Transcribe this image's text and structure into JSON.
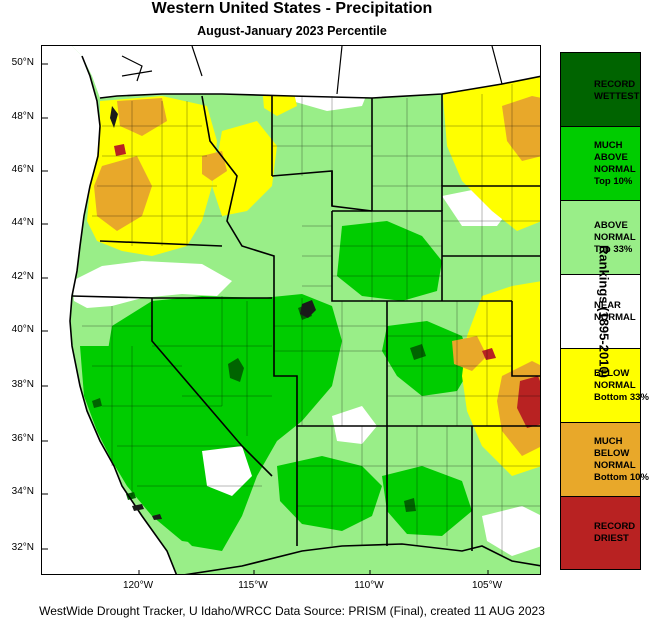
{
  "title": "Western United States - Precipitation",
  "subtitle": "August-January 2023 Percentile",
  "lat_labels": [
    "50°N",
    "48°N",
    "46°N",
    "44°N",
    "42°N",
    "40°N",
    "38°N",
    "36°N",
    "34°N",
    "32°N"
  ],
  "lat_values": [
    50,
    48,
    46,
    44,
    42,
    40,
    38,
    36,
    34,
    32
  ],
  "lon_labels": [
    "120°W",
    "115°W",
    "110°W",
    "105°W"
  ],
  "lon_values": [
    -120,
    -115,
    -110,
    -105
  ],
  "legend": {
    "title": "Rankings (1895-2010)",
    "categories": [
      {
        "label": "RECORD\nWETTEST",
        "color": "#006400"
      },
      {
        "label": "MUCH\nABOVE\nNORMAL\nTop 10%",
        "color": "#00cc00"
      },
      {
        "label": "ABOVE\nNORMAL\nTop 33%",
        "color": "#99ee88"
      },
      {
        "label": "NEAR\nNORMAL",
        "color": "#ffffff"
      },
      {
        "label": "BELOW\nNORMAL\nBottom 33%",
        "color": "#ffff00"
      },
      {
        "label": "MUCH\nBELOW\nNORMAL\nBottom 10%",
        "color": "#e8a82a"
      },
      {
        "label": "RECORD\nDRIEST",
        "color": "#b82222"
      }
    ]
  },
  "credit": "WestWide Drought Tracker, U Idaho/WRCC Data Source: PRISM (Final), created 11 AUG 2023"
}
